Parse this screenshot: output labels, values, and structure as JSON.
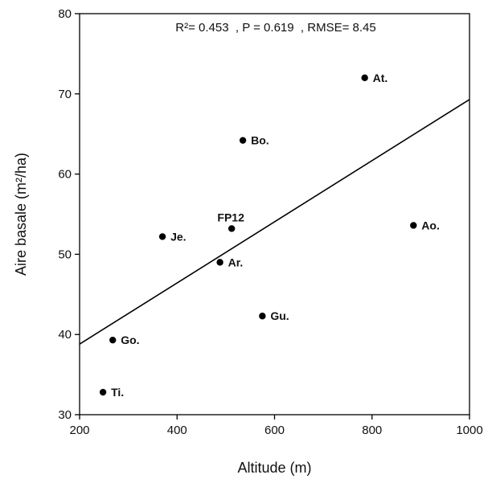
{
  "chart_data": {
    "type": "scatter",
    "xlabel": "Altitude (m)",
    "ylabel": "Aire basale (m²/ha)",
    "xlim": [
      200,
      1000
    ],
    "ylim": [
      30,
      80
    ],
    "xticks": [
      200,
      400,
      600,
      800,
      1000
    ],
    "yticks": [
      30,
      40,
      50,
      60,
      70,
      80
    ],
    "annotation": "R²= 0.453  , P = 0.619  , RMSE= 8.45",
    "grid": false,
    "legend": "none",
    "points": [
      {
        "label": "Ti.",
        "x": 248,
        "y": 32.8
      },
      {
        "label": "Go.",
        "x": 268,
        "y": 39.3
      },
      {
        "label": "Je.",
        "x": 370,
        "y": 52.2
      },
      {
        "label": "Ar.",
        "x": 488,
        "y": 49.0
      },
      {
        "label": "FP12",
        "x": 512,
        "y": 53.2
      },
      {
        "label": "Bo.",
        "x": 535,
        "y": 64.2
      },
      {
        "label": "Gu.",
        "x": 575,
        "y": 42.3
      },
      {
        "label": "At.",
        "x": 785,
        "y": 72.0
      },
      {
        "label": "Ao.",
        "x": 885,
        "y": 53.6
      }
    ],
    "regression_line": {
      "x": [
        200,
        1000
      ],
      "y": [
        38.8,
        69.3
      ]
    },
    "colors": {
      "points": "#000000",
      "line": "#000000",
      "axis": "#000000"
    }
  }
}
